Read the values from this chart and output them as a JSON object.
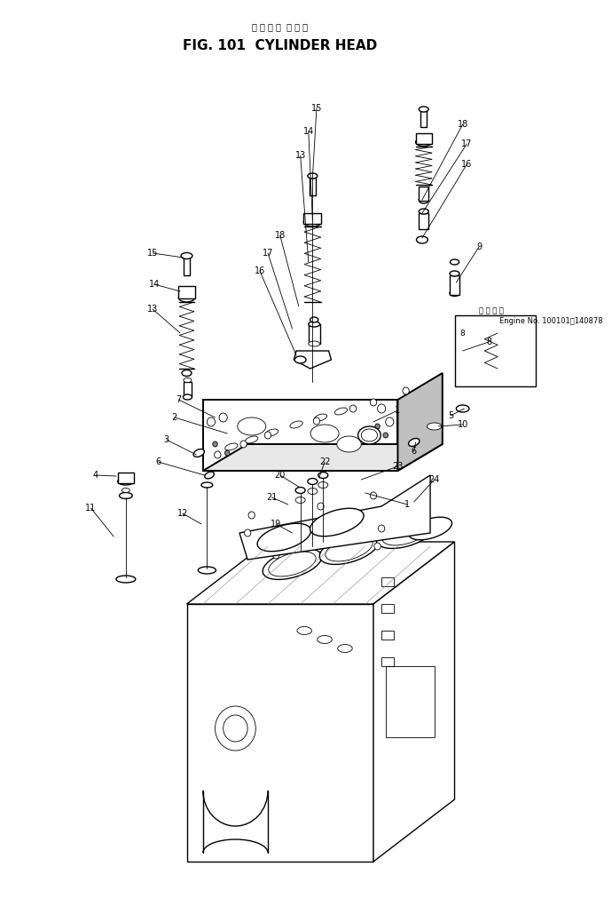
{
  "title_japanese": "シ リ ン ダ  ヘ ッ ド",
  "title_english": "FIG. 101  CYLINDER HEAD",
  "background_color": "#ffffff",
  "fig_width": 6.9,
  "fig_height": 10.29,
  "dpi": 100,
  "engine_note_text": "適 用 号 機",
  "engine_no_text": "Engine No. 100101～140878"
}
